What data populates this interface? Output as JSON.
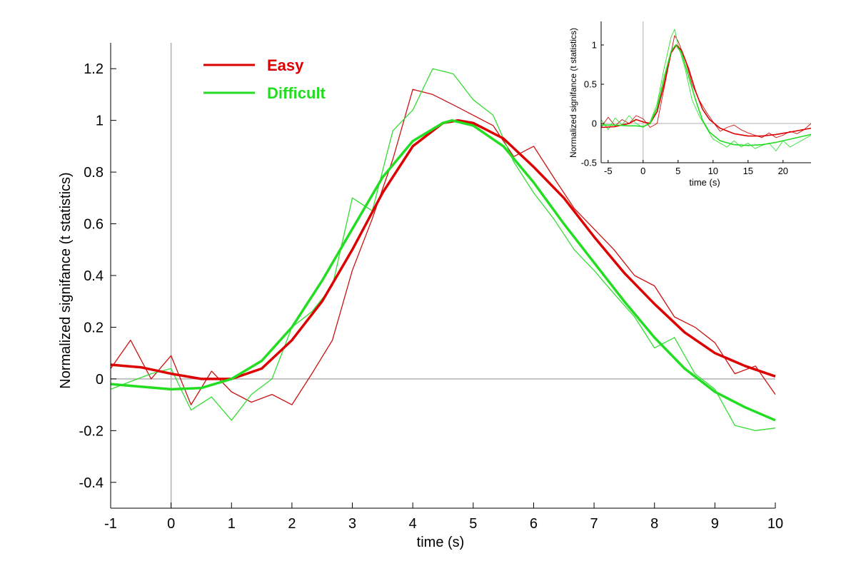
{
  "chart_data": [
    {
      "type": "line",
      "xlabel": "time (s)",
      "ylabel": "Normalized signifance (t statistics)",
      "xlim": [
        -1,
        10
      ],
      "ylim": [
        -0.5,
        1.3
      ],
      "xticks": [
        "-1",
        "0",
        "1",
        "2",
        "3",
        "4",
        "5",
        "6",
        "7",
        "8",
        "9",
        "10"
      ],
      "yticks": [
        "-0.4",
        "-0.2",
        "0",
        "0.2",
        "0.4",
        "0.6",
        "0.8",
        "1",
        "1.2"
      ],
      "legend": {
        "position": "top-left",
        "entries": [
          "Easy",
          "Difficult"
        ]
      },
      "colors": {
        "Easy": "#dd0000",
        "Difficult": "#22dd22",
        "easy_raw": "#cc1111",
        "difficult_raw": "#33dd33",
        "axis": "#000000",
        "ref": "#b0b0b0"
      },
      "series": [
        {
          "name": "Easy",
          "kind": "raw",
          "x": [
            -1.0,
            -0.67,
            -0.33,
            0.0,
            0.33,
            0.67,
            1.0,
            1.33,
            1.67,
            2.0,
            2.33,
            2.67,
            3.0,
            3.33,
            3.67,
            4.0,
            4.33,
            4.67,
            5.0,
            5.33,
            5.67,
            6.0,
            6.33,
            6.67,
            7.0,
            7.33,
            7.67,
            8.0,
            8.33,
            8.67,
            9.0,
            9.33,
            9.67,
            10.0
          ],
          "y": [
            0.04,
            0.15,
            0.0,
            0.09,
            -0.1,
            0.03,
            -0.05,
            -0.09,
            -0.06,
            -0.1,
            0.02,
            0.15,
            0.42,
            0.62,
            0.85,
            1.12,
            1.1,
            1.06,
            1.02,
            0.98,
            0.86,
            0.9,
            0.78,
            0.66,
            0.58,
            0.5,
            0.4,
            0.36,
            0.24,
            0.2,
            0.14,
            0.02,
            0.05,
            -0.06
          ]
        },
        {
          "name": "Difficult",
          "kind": "raw",
          "x": [
            -1.0,
            -0.67,
            -0.33,
            0.0,
            0.33,
            0.67,
            1.0,
            1.33,
            1.67,
            2.0,
            2.33,
            2.67,
            3.0,
            3.33,
            3.67,
            4.0,
            4.33,
            4.67,
            5.0,
            5.33,
            5.67,
            6.0,
            6.33,
            6.67,
            7.0,
            7.33,
            7.67,
            8.0,
            8.33,
            8.67,
            9.0,
            9.33,
            9.67,
            10.0
          ],
          "y": [
            -0.04,
            -0.01,
            0.02,
            0.04,
            -0.12,
            -0.07,
            -0.16,
            -0.06,
            0.0,
            0.2,
            0.26,
            0.36,
            0.7,
            0.65,
            0.96,
            1.04,
            1.2,
            1.18,
            1.08,
            1.02,
            0.84,
            0.72,
            0.62,
            0.5,
            0.42,
            0.33,
            0.24,
            0.12,
            0.16,
            0.02,
            -0.04,
            -0.18,
            -0.2,
            -0.19
          ]
        },
        {
          "name": "Easy",
          "kind": "fit",
          "x": [
            -1.0,
            -0.5,
            0.0,
            0.5,
            1.0,
            1.5,
            2.0,
            2.5,
            3.0,
            3.5,
            4.0,
            4.5,
            4.75,
            5.0,
            5.5,
            6.0,
            6.5,
            7.0,
            7.5,
            8.0,
            8.5,
            9.0,
            9.5,
            10.0
          ],
          "y": [
            0.055,
            0.045,
            0.02,
            0.0,
            0.0,
            0.04,
            0.15,
            0.3,
            0.5,
            0.72,
            0.9,
            0.99,
            1.0,
            0.99,
            0.93,
            0.82,
            0.7,
            0.55,
            0.41,
            0.29,
            0.18,
            0.1,
            0.05,
            0.01
          ]
        },
        {
          "name": "Difficult",
          "kind": "fit",
          "x": [
            -1.0,
            -0.5,
            0.0,
            0.5,
            1.0,
            1.5,
            2.0,
            2.5,
            3.0,
            3.5,
            4.0,
            4.5,
            4.65,
            5.0,
            5.5,
            6.0,
            6.5,
            7.0,
            7.5,
            8.0,
            8.5,
            9.0,
            9.5,
            10.0
          ],
          "y": [
            -0.02,
            -0.03,
            -0.04,
            -0.035,
            0.0,
            0.07,
            0.2,
            0.38,
            0.58,
            0.78,
            0.92,
            0.99,
            1.0,
            0.98,
            0.9,
            0.76,
            0.6,
            0.45,
            0.3,
            0.16,
            0.04,
            -0.05,
            -0.11,
            -0.16
          ]
        }
      ]
    },
    {
      "type": "line",
      "role": "inset",
      "legend": {
        "position": "none"
      },
      "xlabel": "time (s)",
      "ylabel": "Normalized signifance (t statistics)",
      "xlim": [
        -6,
        24
      ],
      "ylim": [
        -0.5,
        1.3
      ],
      "xticks": [
        "-5",
        "0",
        "5",
        "10",
        "15",
        "20"
      ],
      "yticks": [
        "-0.5",
        "0",
        "0.5",
        "1"
      ],
      "series": [
        {
          "name": "Easy",
          "kind": "raw",
          "x": [
            -6,
            -5,
            -4,
            -3,
            -2,
            -1,
            0,
            1,
            2,
            3,
            4,
            4.5,
            5,
            6,
            7,
            8,
            9,
            10,
            11,
            12,
            13,
            14,
            15,
            16,
            17,
            18,
            19,
            20,
            21,
            22,
            23,
            24
          ],
          "y": [
            -0.05,
            0.08,
            -0.03,
            0.05,
            0.0,
            0.1,
            0.06,
            -0.05,
            0.0,
            0.45,
            0.9,
            1.12,
            1.05,
            0.82,
            0.5,
            0.3,
            0.15,
            0.02,
            -0.1,
            -0.05,
            -0.02,
            -0.08,
            -0.12,
            -0.15,
            -0.18,
            -0.12,
            -0.18,
            -0.15,
            -0.1,
            -0.13,
            -0.08,
            0.0
          ]
        },
        {
          "name": "Difficult",
          "kind": "raw",
          "x": [
            -6,
            -5,
            -4,
            -3,
            -2,
            -1,
            0,
            1,
            2,
            3,
            4,
            4.5,
            5,
            6,
            7,
            8,
            9,
            10,
            11,
            12,
            13,
            14,
            15,
            16,
            17,
            18,
            19,
            20,
            21,
            22,
            23,
            24
          ],
          "y": [
            0.05,
            -0.08,
            0.07,
            -0.02,
            0.1,
            0.0,
            -0.05,
            0.02,
            0.25,
            0.7,
            1.1,
            1.2,
            1.0,
            0.7,
            0.3,
            0.1,
            -0.05,
            -0.2,
            -0.25,
            -0.3,
            -0.22,
            -0.3,
            -0.25,
            -0.32,
            -0.28,
            -0.25,
            -0.35,
            -0.22,
            -0.3,
            -0.25,
            -0.2,
            -0.15
          ]
        },
        {
          "name": "Easy",
          "kind": "fit",
          "x": [
            -6,
            -4,
            -2,
            -1,
            0,
            1,
            2,
            3,
            4,
            4.75,
            5.5,
            6.5,
            7.5,
            8.5,
            9.5,
            11,
            13,
            15,
            17,
            19,
            21,
            24
          ],
          "y": [
            -0.05,
            -0.04,
            0.0,
            0.05,
            0.02,
            0.0,
            0.15,
            0.5,
            0.9,
            1.0,
            0.93,
            0.7,
            0.41,
            0.18,
            0.05,
            -0.06,
            -0.13,
            -0.16,
            -0.16,
            -0.14,
            -0.11,
            -0.06
          ]
        },
        {
          "name": "Difficult",
          "kind": "fit",
          "x": [
            -6,
            -4,
            -2,
            -1,
            0,
            1,
            2,
            3,
            4,
            4.65,
            5.5,
            6.5,
            7.5,
            8.5,
            9.5,
            11,
            13,
            15,
            17,
            19,
            21,
            24
          ],
          "y": [
            -0.02,
            -0.02,
            -0.03,
            -0.03,
            -0.04,
            0.0,
            0.2,
            0.58,
            0.92,
            1.0,
            0.9,
            0.6,
            0.3,
            0.04,
            -0.11,
            -0.22,
            -0.27,
            -0.28,
            -0.27,
            -0.24,
            -0.2,
            -0.14
          ]
        }
      ]
    }
  ]
}
